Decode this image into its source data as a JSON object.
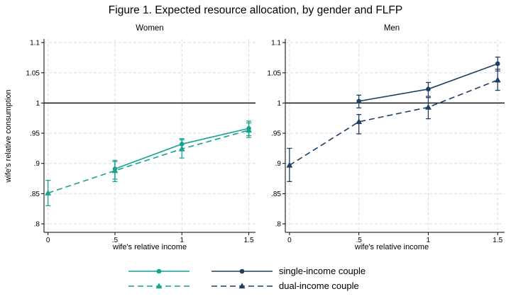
{
  "figure": {
    "title": "Figure 1. Expected resource allocation, by gender and FLFP",
    "ylabel": "wife's relative consumption",
    "xlabel": "wife's relative income"
  },
  "legend": {
    "position": "bottom",
    "entries": [
      {
        "label": "single-income couple",
        "style": "solid",
        "marker": "circle"
      },
      {
        "label": "dual-income couple",
        "style": "dashed",
        "marker": "triangle"
      }
    ]
  },
  "colors": {
    "women_accent": "#17A38F",
    "men_accent": "#1D3F63",
    "gridline": "#dcdcdc",
    "reference_line": "#000000",
    "axis": "#000000"
  },
  "chart_data": [
    {
      "type": "line",
      "title": "Women",
      "xlabel": "wife's relative income",
      "ylabel": "wife's relative consumption",
      "color": "#17A38F",
      "xlim": [
        0,
        1.5
      ],
      "ylim": [
        0.8,
        1.1
      ],
      "ref_line_y": 1,
      "grid": "dashed-both",
      "x_ticks": [
        {
          "v": 0,
          "label": "0"
        },
        {
          "v": 0.5,
          "label": ".5"
        },
        {
          "v": 1,
          "label": "1"
        },
        {
          "v": 1.5,
          "label": "1.5"
        }
      ],
      "y_ticks": [
        {
          "v": 1.1,
          "label": "1.1"
        },
        {
          "v": 1.05,
          "label": "1.05"
        },
        {
          "v": 1,
          "label": "1"
        },
        {
          "v": 0.95,
          "label": ".95"
        },
        {
          "v": 0.9,
          "label": ".9"
        },
        {
          "v": 0.85,
          "label": ".85"
        },
        {
          "v": 0.8,
          "label": ".8"
        }
      ],
      "series": [
        {
          "name": "single-income couple",
          "style": "solid",
          "marker": "circle",
          "points": [
            {
              "x": 0.5,
              "y": 0.891,
              "lo": 0.874,
              "hi": 0.905
            },
            {
              "x": 1,
              "y": 0.932,
              "lo": 0.921,
              "hi": 0.941
            },
            {
              "x": 1.5,
              "y": 0.958,
              "lo": 0.946,
              "hi": 0.97
            }
          ]
        },
        {
          "name": "dual-income couple",
          "style": "dashed",
          "marker": "triangle",
          "points": [
            {
              "x": 0,
              "y": 0.851,
              "lo": 0.83,
              "hi": 0.872
            },
            {
              "x": 0.5,
              "y": 0.888,
              "lo": 0.87,
              "hi": 0.903
            },
            {
              "x": 1,
              "y": 0.924,
              "lo": 0.909,
              "hi": 0.939
            },
            {
              "x": 1.5,
              "y": 0.955,
              "lo": 0.943,
              "hi": 0.967
            }
          ]
        }
      ]
    },
    {
      "type": "line",
      "title": "Men",
      "xlabel": "wife's relative income",
      "ylabel": "wife's relative consumption",
      "color": "#1D3F63",
      "xlim": [
        0,
        1.5
      ],
      "ylim": [
        0.8,
        1.1
      ],
      "ref_line_y": 1,
      "grid": "dashed-both",
      "x_ticks": [
        {
          "v": 0,
          "label": "0"
        },
        {
          "v": 0.5,
          "label": ".5"
        },
        {
          "v": 1,
          "label": "1"
        },
        {
          "v": 1.5,
          "label": "1.5"
        }
      ],
      "y_ticks": [
        {
          "v": 1.1,
          "label": "1.1"
        },
        {
          "v": 1.05,
          "label": "1.05"
        },
        {
          "v": 1,
          "label": "1"
        },
        {
          "v": 0.95,
          "label": ".95"
        },
        {
          "v": 0.9,
          "label": ".9"
        },
        {
          "v": 0.85,
          "label": ".85"
        },
        {
          "v": 0.8,
          "label": ".8"
        }
      ],
      "series": [
        {
          "name": "single-income couple",
          "style": "solid",
          "marker": "circle",
          "points": [
            {
              "x": 0.5,
              "y": 1.003,
              "lo": 0.992,
              "hi": 1.013
            },
            {
              "x": 1,
              "y": 1.023,
              "lo": 1.011,
              "hi": 1.034
            },
            {
              "x": 1.5,
              "y": 1.065,
              "lo": 1.053,
              "hi": 1.076
            }
          ]
        },
        {
          "name": "dual-income couple",
          "style": "dashed",
          "marker": "triangle",
          "points": [
            {
              "x": 0,
              "y": 0.897,
              "lo": 0.87,
              "hi": 0.925
            },
            {
              "x": 0.5,
              "y": 0.969,
              "lo": 0.949,
              "hi": 0.981
            },
            {
              "x": 1,
              "y": 0.993,
              "lo": 0.974,
              "hi": 1.009
            },
            {
              "x": 1.5,
              "y": 1.038,
              "lo": 1.021,
              "hi": 1.056
            }
          ]
        }
      ]
    }
  ]
}
